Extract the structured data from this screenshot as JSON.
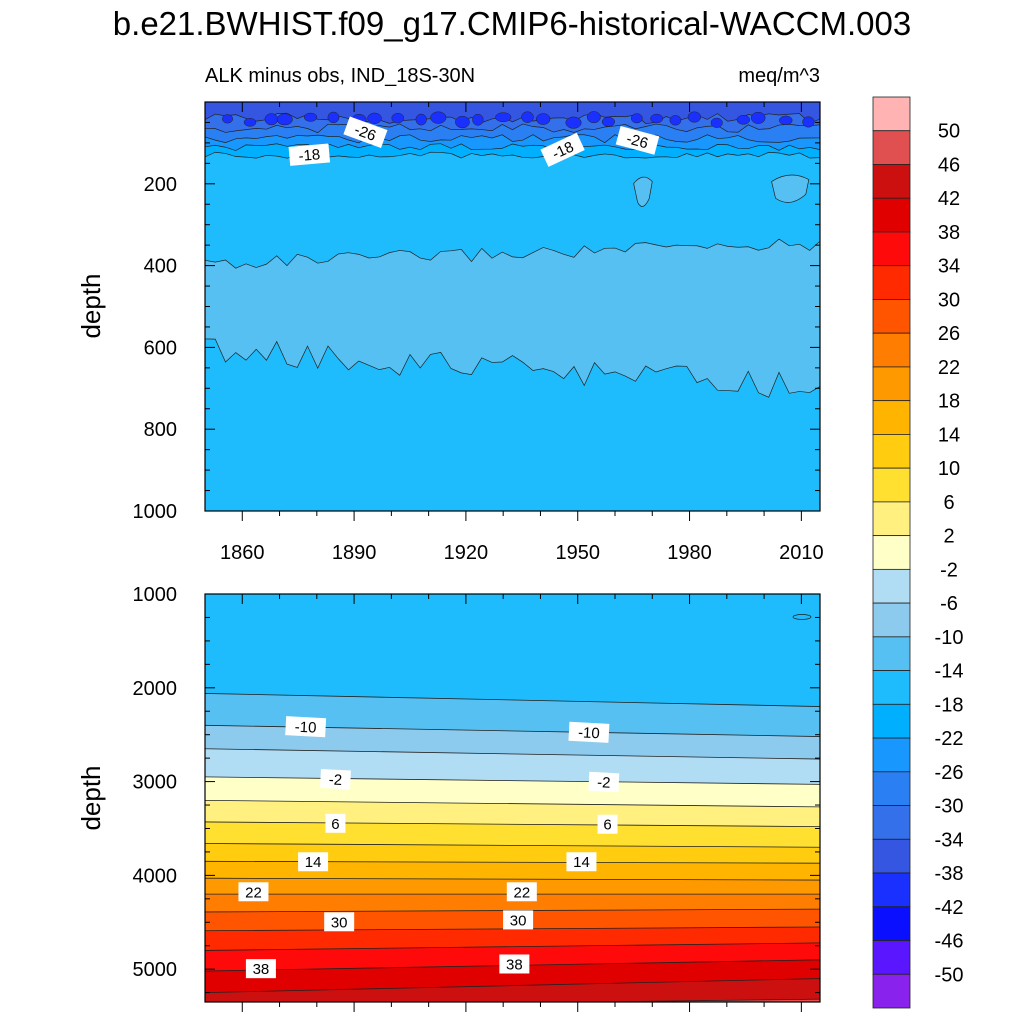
{
  "figure": {
    "title": "b.e21.BWHIST.f09_g17.CMIP6-historical-WACCM.003",
    "subtitle_left": "ALK minus obs, IND_18S-30N",
    "subtitle_right": "meq/m^3",
    "ylabel": "depth"
  },
  "chart_data": [
    {
      "type": "contour",
      "panel": "upper",
      "title": "ALK minus obs, IND_18S-30N",
      "units": "meq/m^3",
      "xlabel": "",
      "ylabel": "depth",
      "xlim": [
        1850,
        2015
      ],
      "ylim": [
        1000,
        0
      ],
      "xticks": [
        1860,
        1890,
        1920,
        1950,
        1980,
        2010
      ],
      "yticks": [
        200,
        400,
        600,
        800,
        1000
      ],
      "background_level": -18,
      "bands": [
        {
          "level_min": -14,
          "level_max": -10,
          "depth_top_start": 395,
          "depth_top_end": 345,
          "depth_bottom_start": 605,
          "depth_bottom_end": 700
        },
        {
          "level_min": -14,
          "level_max": -10,
          "note": "patch",
          "x_range": [
            1965,
            1970
          ],
          "depth_range": [
            180,
            260
          ]
        },
        {
          "level_min": -14,
          "level_max": -10,
          "note": "patch",
          "x_range": [
            2002,
            2012
          ],
          "depth_range": [
            175,
            250
          ]
        }
      ],
      "surface_layers": [
        {
          "depth": 130,
          "level": -22
        },
        {
          "depth": 110,
          "level": -26
        },
        {
          "depth": 90,
          "level": -30
        },
        {
          "depth": 65,
          "level": -34
        },
        {
          "depth": 40,
          "level": -38
        }
      ],
      "contour_labels": [
        {
          "text": "-26",
          "x": 1893,
          "depth": 75
        },
        {
          "text": "-18",
          "x": 1878,
          "depth": 130
        },
        {
          "text": "-18",
          "x": 1946,
          "depth": 118
        },
        {
          "text": "-26",
          "x": 1966,
          "depth": 95
        }
      ]
    },
    {
      "type": "contour",
      "panel": "lower",
      "xlabel": "",
      "ylabel": "depth",
      "xlim": [
        1850,
        2015
      ],
      "ylim": [
        5350,
        1000
      ],
      "yticks": [
        1000,
        2000,
        3000,
        4000,
        5000
      ],
      "contours": [
        {
          "level": -14,
          "depth_start": 2060,
          "depth_end": 2200
        },
        {
          "level": -10,
          "depth_start": 2400,
          "depth_end": 2520
        },
        {
          "level": -6,
          "depth_start": 2650,
          "depth_end": 2760
        },
        {
          "level": -2,
          "depth_start": 2950,
          "depth_end": 3030
        },
        {
          "level": 2,
          "depth_start": 3200,
          "depth_end": 3270
        },
        {
          "level": 6,
          "depth_start": 3430,
          "depth_end": 3480
        },
        {
          "level": 10,
          "depth_start": 3660,
          "depth_end": 3700
        },
        {
          "level": 14,
          "depth_start": 3850,
          "depth_end": 3870
        },
        {
          "level": 18,
          "depth_start": 4030,
          "depth_end": 4050
        },
        {
          "level": 22,
          "depth_start": 4200,
          "depth_end": 4200
        },
        {
          "level": 26,
          "depth_start": 4390,
          "depth_end": 4360
        },
        {
          "level": 30,
          "depth_start": 4590,
          "depth_end": 4550
        },
        {
          "level": 34,
          "depth_start": 4800,
          "depth_end": 4720
        },
        {
          "level": 38,
          "depth_start": 5020,
          "depth_end": 4900
        },
        {
          "level": 42,
          "depth_start": 5250,
          "depth_end": 5100
        },
        {
          "level": 46,
          "depth_start": 5400,
          "depth_end": 5320
        }
      ],
      "contour_labels": [
        {
          "text": "-10",
          "x": 1877,
          "depth": 2420
        },
        {
          "text": "-10",
          "x": 1953,
          "depth": 2480
        },
        {
          "text": "-2",
          "x": 1885,
          "depth": 2980
        },
        {
          "text": "-2",
          "x": 1957,
          "depth": 3010
        },
        {
          "text": "6",
          "x": 1885,
          "depth": 3450
        },
        {
          "text": "6",
          "x": 1958,
          "depth": 3460
        },
        {
          "text": "14",
          "x": 1879,
          "depth": 3860
        },
        {
          "text": "14",
          "x": 1951,
          "depth": 3860
        },
        {
          "text": "22",
          "x": 1863,
          "depth": 4180
        },
        {
          "text": "22",
          "x": 1935,
          "depth": 4180
        },
        {
          "text": "30",
          "x": 1886,
          "depth": 4500
        },
        {
          "text": "30",
          "x": 1934,
          "depth": 4480
        },
        {
          "text": "38",
          "x": 1865,
          "depth": 5000
        },
        {
          "text": "38",
          "x": 1933,
          "depth": 4950
        }
      ]
    }
  ],
  "colorbar": {
    "labels": [
      "50",
      "46",
      "42",
      "38",
      "34",
      "30",
      "26",
      "22",
      "18",
      "14",
      "10",
      "6",
      "2",
      "-2",
      "-6",
      "-10",
      "-14",
      "-18",
      "-22",
      "-26",
      "-30",
      "-34",
      "-38",
      "-42",
      "-46",
      "-50"
    ],
    "colors": [
      "#ffb3b3",
      "#e05050",
      "#cc1010",
      "#e00000",
      "#ff0a0a",
      "#ff2a00",
      "#ff5500",
      "#ff7d00",
      "#ff9900",
      "#ffb400",
      "#ffcc10",
      "#ffe030",
      "#fff080",
      "#ffffc8",
      "#b0dcf4",
      "#8ccaee",
      "#56c0f2",
      "#1ebcfc",
      "#00b0ff",
      "#1898ff",
      "#2a80f2",
      "#3470ea",
      "#3456e0",
      "#1a30ff",
      "#0a10ff",
      "#5a16ff",
      "#8a22ee"
    ]
  }
}
